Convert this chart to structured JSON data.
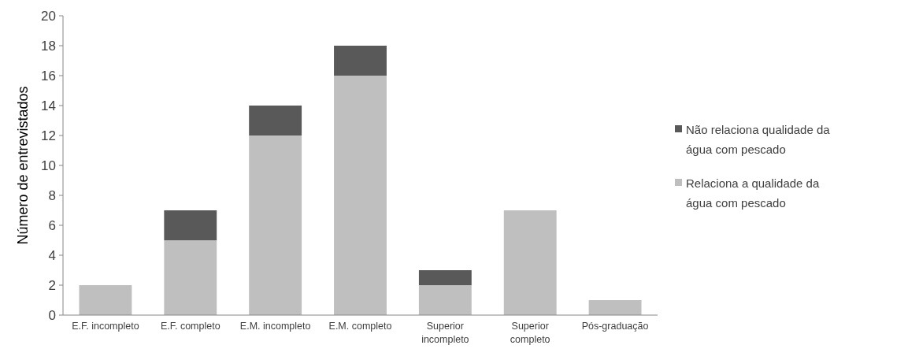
{
  "chart_data": {
    "type": "bar",
    "stacked": true,
    "ylabel": "Número de entrevistados",
    "categories": [
      "E.F. incompleto",
      "E.F. completo",
      "E.M. incompleto",
      "E.M. completo",
      "Superior incompleto",
      "Superior completo",
      "Pós-graduação"
    ],
    "series": [
      {
        "name": "Relaciona a qualidade da água com pescado",
        "color": "#bfbfbf",
        "values": [
          2,
          5,
          12,
          16,
          2,
          7,
          1
        ]
      },
      {
        "name": "Não relaciona qualidade da água com pescado",
        "color": "#595959",
        "values": [
          0,
          2,
          2,
          2,
          1,
          0,
          0
        ]
      }
    ],
    "ylim": [
      0,
      20
    ],
    "yticks": [
      0,
      2,
      4,
      6,
      8,
      10,
      12,
      14,
      16,
      18,
      20
    ],
    "grid": false,
    "legend": "right"
  }
}
